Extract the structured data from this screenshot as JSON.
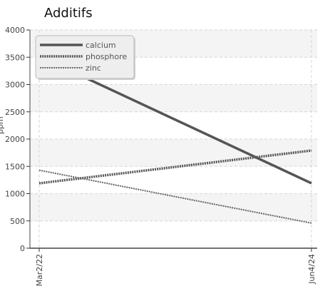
{
  "chart_data": {
    "type": "line",
    "title": "Additifs",
    "ylabel": "ppm",
    "xlabel": "",
    "x": [
      "Mar2/22",
      "Jun4/24"
    ],
    "ylim": [
      0,
      4000
    ],
    "yticks": [
      0,
      500,
      1000,
      1500,
      2000,
      2500,
      3000,
      3500,
      4000
    ],
    "grid": true,
    "legend_position": "top-left",
    "series": [
      {
        "name": "calcium",
        "values": [
          3520,
          1190
        ],
        "color": "#555555",
        "style": "solid"
      },
      {
        "name": "phosphore",
        "values": [
          1190,
          1790
        ],
        "color": "#555555",
        "style": "dotted"
      },
      {
        "name": "zinc",
        "values": [
          1430,
          460
        ],
        "color": "#666666",
        "style": "thin-dotted"
      }
    ]
  }
}
